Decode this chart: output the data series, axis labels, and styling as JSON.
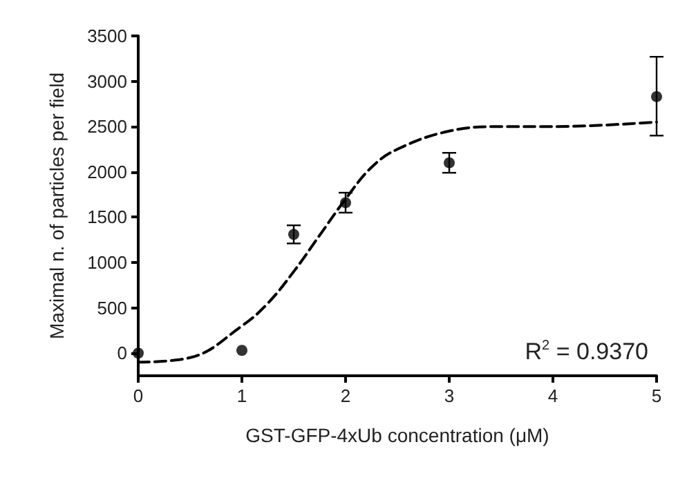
{
  "chart_data": {
    "type": "scatter",
    "xlabel": "GST-GFP-4xUb concentration (μM)",
    "ylabel": "Maximal n. of particles per field",
    "xlim": [
      0,
      5
    ],
    "xticks": [
      0,
      1,
      2,
      3,
      4,
      5
    ],
    "ylim": [
      -250,
      3500
    ],
    "yticks": [
      0,
      500,
      1000,
      1500,
      2000,
      2500,
      3000,
      3500
    ],
    "grid": false,
    "marker": "circle",
    "annotations": [
      "R$^{2}$ = 0.9370"
    ],
    "series": [
      {
        "color": "#000000",
        "x": [
          0,
          1,
          1.5,
          2,
          3,
          5
        ],
        "values": [
          0,
          30,
          1310,
          1660,
          2100,
          2830
        ],
        "errors": [
          null,
          null,
          100,
          110,
          110,
          [
            2400,
            3270
          ]
        ]
      },
      {
        "type": "line",
        "color": "#000000",
        "line_style": "dashed",
        "marker": "none",
        "x": [
          0,
          0.5,
          1,
          1.25,
          1.5,
          1.75,
          2,
          2.25,
          2.5,
          3,
          3.5,
          4,
          5
        ],
        "values": [
          -100,
          -50,
          300,
          550,
          900,
          1300,
          1700,
          2050,
          2250,
          2450,
          2500,
          2500,
          2550
        ]
      }
    ]
  }
}
